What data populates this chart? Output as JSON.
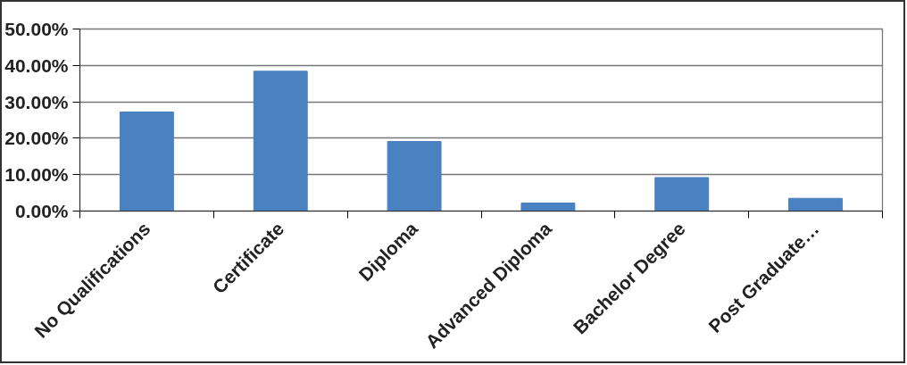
{
  "chart_data": {
    "type": "bar",
    "categories": [
      "No Qualifications",
      "Certificate",
      "Diploma",
      "Advanced Diploma",
      "Bachelor Degree",
      "Post Graduate…"
    ],
    "values": [
      27.2,
      38.4,
      19.1,
      2.2,
      9.2,
      3.5
    ],
    "color": "#4a81c0",
    "ylim": [
      0,
      50
    ],
    "yticks": [
      {
        "value": 0,
        "label": "0.00%"
      },
      {
        "value": 10,
        "label": "10.00%"
      },
      {
        "value": 20,
        "label": "20.00%"
      },
      {
        "value": 30,
        "label": "30.00%"
      },
      {
        "value": 40,
        "label": "40.00%"
      },
      {
        "value": 50,
        "label": "50.00%"
      }
    ],
    "grid": "y"
  }
}
